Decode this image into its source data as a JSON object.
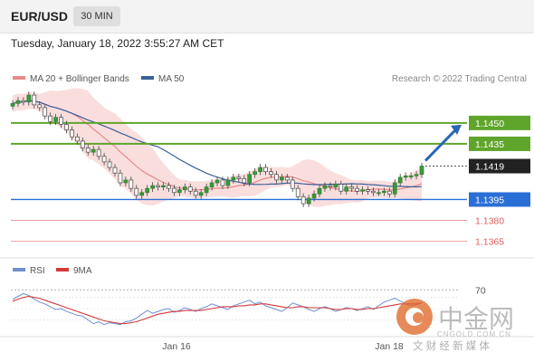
{
  "header": {
    "symbol": "EUR/USD",
    "interval": "30 MIN",
    "datetime": "Tuesday, January 18, 2022 3:55:27 AM CET"
  },
  "colors": {
    "ma20": "#e88a8a",
    "ma50": "#3b5f9a",
    "bollinger_fill": "#f9dada",
    "candle": "#3a9a3a",
    "resistance": "#5fa52b",
    "pivot": "#2a6fd6",
    "support": "#e35d5d",
    "arrow": "#2a65b4",
    "rsi": "#6f8fd0",
    "rsi_ma": "#d33a3a",
    "current_price": "#222222"
  },
  "watermark": {
    "main": "中金网",
    "url": "CNGOLD.COM.CN",
    "sub": "文 财 经 新 媒 体"
  },
  "chart_data": [
    {
      "type": "candlestick",
      "legend": [
        "MA 20 + Bollinger Bands",
        "MA 50"
      ],
      "legend_placement": "top-left",
      "source": "Research © 2022 Trading Central",
      "ylim": [
        1.1355,
        1.1485
      ],
      "x_ticks": [
        "Jan 16",
        "Jan 18"
      ],
      "close": [
        1.1464,
        1.1466,
        1.1465,
        1.147,
        1.1463,
        1.1461,
        1.1455,
        1.1451,
        1.1454,
        1.1449,
        1.1445,
        1.144,
        1.1437,
        1.1432,
        1.1429,
        1.1431,
        1.1426,
        1.1422,
        1.1418,
        1.1414,
        1.1407,
        1.1409,
        1.1403,
        1.1398,
        1.14,
        1.1403,
        1.1405,
        1.1404,
        1.1405,
        1.1403,
        1.14,
        1.1402,
        1.1404,
        1.1401,
        1.1398,
        1.14,
        1.1404,
        1.1407,
        1.1409,
        1.1405,
        1.1409,
        1.1411,
        1.141,
        1.1407,
        1.1413,
        1.1415,
        1.1418,
        1.1415,
        1.1413,
        1.1409,
        1.1411,
        1.1409,
        1.1403,
        1.1397,
        1.1392,
        1.1396,
        1.1399,
        1.1403,
        1.1405,
        1.1404,
        1.1406,
        1.1401,
        1.1404,
        1.1403,
        1.1401,
        1.1402,
        1.1401,
        1.14,
        1.14,
        1.1401,
        1.1399,
        1.1407,
        1.1411,
        1.1412,
        1.1412,
        1.1413,
        1.1419
      ],
      "levels": [
        {
          "label": "1.1450",
          "value": 1.145,
          "kind": "resistance"
        },
        {
          "label": "1.1435",
          "value": 1.1435,
          "kind": "resistance"
        },
        {
          "label": "1.1419",
          "value": 1.1419,
          "kind": "current"
        },
        {
          "label": "1.1395",
          "value": 1.1395,
          "kind": "pivot"
        },
        {
          "label": "1.1380",
          "value": 1.138,
          "kind": "support"
        },
        {
          "label": "1.1365",
          "value": 1.1365,
          "kind": "support"
        }
      ],
      "forecast_arrow": {
        "from": 1.1419,
        "to": 1.145
      }
    },
    {
      "type": "line",
      "legend": [
        "RSI",
        "9MA"
      ],
      "legend_placement": "top-left",
      "levels": [
        {
          "label": "70",
          "value": 70
        }
      ],
      "ylim": [
        22,
        78
      ],
      "series": [
        {
          "name": "RSI",
          "values": [
            60,
            63,
            66,
            64,
            60,
            57,
            55,
            52,
            49,
            50,
            47,
            45,
            43,
            42,
            38,
            34,
            36,
            33,
            35,
            34,
            33,
            36,
            37,
            40,
            44,
            48,
            45,
            47,
            49,
            50,
            46,
            48,
            51,
            49,
            47,
            50,
            52,
            55,
            53,
            51,
            49,
            53,
            55,
            57,
            59,
            55,
            57,
            53,
            51,
            49,
            47,
            51,
            56,
            54,
            52,
            49,
            47,
            50,
            52,
            50,
            47,
            49,
            51,
            50,
            48,
            50,
            52,
            49,
            53,
            57,
            59,
            61,
            58,
            55,
            53,
            54,
            56
          ]
        },
        {
          "name": "9MA",
          "values": [
            58,
            60,
            62,
            63,
            62,
            61,
            59,
            57,
            55,
            53,
            51,
            49,
            47,
            45,
            43,
            41,
            39,
            37,
            36,
            35,
            34,
            34,
            35,
            36,
            38,
            40,
            42,
            44,
            45,
            46,
            47,
            47,
            48,
            48,
            48,
            48,
            49,
            50,
            51,
            52,
            52,
            52,
            53,
            53,
            54,
            54,
            55,
            55,
            54,
            53,
            52,
            51,
            51,
            52,
            52,
            51,
            51,
            51,
            51,
            50,
            49,
            49,
            50,
            50,
            49,
            49,
            50,
            50,
            51,
            52,
            53,
            54,
            55,
            55,
            55,
            55,
            56
          ]
        }
      ]
    }
  ]
}
